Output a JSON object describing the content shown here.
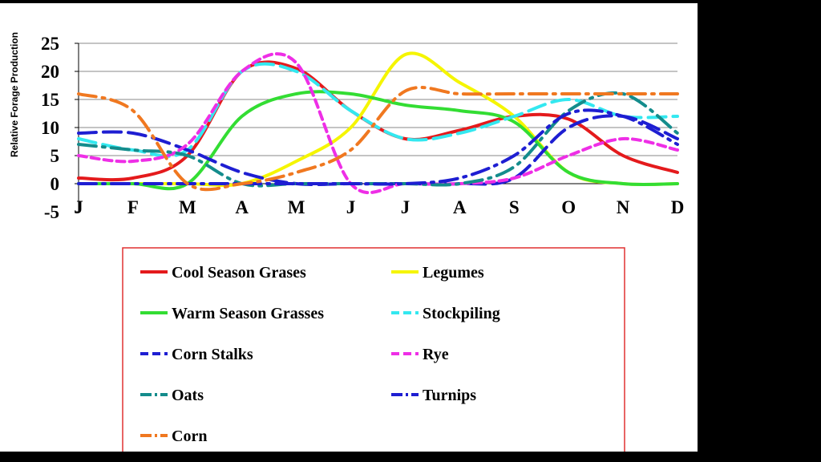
{
  "chart_data": {
    "type": "line",
    "title": "",
    "xlabel": "",
    "ylabel": "Relative Forage Production",
    "categories": [
      "J",
      "F",
      "M",
      "A",
      "M",
      "J",
      "J",
      "A",
      "S",
      "O",
      "N",
      "D"
    ],
    "ylim": [
      -5,
      25
    ],
    "yticks": [
      -5,
      0,
      5,
      10,
      15,
      20,
      25
    ],
    "grid": true,
    "legend_position": "bottom",
    "legend_border_color": "#e03030",
    "series": [
      {
        "name": "Cool Season Grases",
        "color": "#e41a1c",
        "dash": "solid",
        "values": [
          1,
          1,
          5,
          20,
          20.5,
          13,
          8,
          9.5,
          12,
          11.5,
          5,
          2
        ]
      },
      {
        "name": "Legumes",
        "color": "#f5f500",
        "dash": "solid",
        "values": [
          0,
          0,
          0,
          0,
          4,
          10,
          23,
          18,
          12,
          2,
          0,
          0
        ]
      },
      {
        "name": "Warm Season Grasses",
        "color": "#33dd33",
        "dash": "solid",
        "values": [
          0,
          0,
          0,
          12,
          16,
          16,
          14,
          13,
          11,
          2,
          0,
          0
        ]
      },
      {
        "name": "Stockpiling",
        "color": "#33e8f0",
        "dash": "longdash",
        "values": [
          8,
          6,
          6,
          20,
          20,
          13,
          8,
          9,
          12,
          15,
          12,
          12
        ]
      },
      {
        "name": "Corn Stalks",
        "color": "#1e1ed2",
        "dash": "longdash",
        "values": [
          9,
          9,
          6,
          2,
          0,
          0,
          0,
          0,
          1,
          10,
          12,
          8
        ]
      },
      {
        "name": "Rye",
        "color": "#ee2ee6",
        "dash": "dash",
        "values": [
          5,
          4,
          7,
          20,
          21.5,
          0,
          0,
          0,
          1,
          5,
          8,
          6
        ]
      },
      {
        "name": "Oats",
        "color": "#148c8c",
        "dash": "dashdot",
        "values": [
          7,
          6,
          5,
          0,
          0,
          0,
          0,
          0,
          3,
          13,
          16,
          9
        ]
      },
      {
        "name": "Turnips",
        "color": "#1e1ed2",
        "dash": "dashdot",
        "values": [
          0,
          0,
          0,
          0,
          0,
          0,
          0,
          1,
          5,
          12.5,
          12,
          7
        ]
      },
      {
        "name": "Corn",
        "color": "#f07820",
        "dash": "dashdot",
        "values": [
          16,
          13,
          0,
          0,
          2,
          6,
          16.5,
          16,
          16,
          16,
          16,
          16
        ]
      }
    ]
  }
}
